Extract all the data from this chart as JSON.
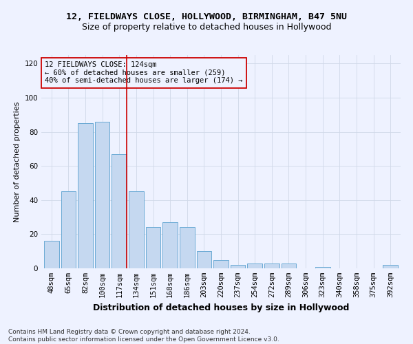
{
  "title": "12, FIELDWAYS CLOSE, HOLLYWOOD, BIRMINGHAM, B47 5NU",
  "subtitle": "Size of property relative to detached houses in Hollywood",
  "xlabel": "Distribution of detached houses by size in Hollywood",
  "ylabel": "Number of detached properties",
  "categories": [
    "48sqm",
    "65sqm",
    "82sqm",
    "100sqm",
    "117sqm",
    "134sqm",
    "151sqm",
    "168sqm",
    "186sqm",
    "203sqm",
    "220sqm",
    "237sqm",
    "254sqm",
    "272sqm",
    "289sqm",
    "306sqm",
    "323sqm",
    "340sqm",
    "358sqm",
    "375sqm",
    "392sqm"
  ],
  "values": [
    16,
    45,
    85,
    86,
    67,
    45,
    24,
    27,
    24,
    10,
    5,
    2,
    3,
    3,
    3,
    0,
    1,
    0,
    0,
    0,
    2
  ],
  "bar_color": "#c5d8f0",
  "bar_edge_color": "#6aaad4",
  "red_line_x": 4.42,
  "annotation_text": "12 FIELDWAYS CLOSE: 124sqm\n← 60% of detached houses are smaller (259)\n40% of semi-detached houses are larger (174) →",
  "ylim": [
    0,
    125
  ],
  "yticks": [
    0,
    20,
    40,
    60,
    80,
    100,
    120
  ],
  "footer_line1": "Contains HM Land Registry data © Crown copyright and database right 2024.",
  "footer_line2": "Contains public sector information licensed under the Open Government Licence v3.0.",
  "bg_color": "#eef2ff",
  "grid_color": "#d0d8e8",
  "annotation_box_color": "#cc0000",
  "title_fontsize": 9.5,
  "subtitle_fontsize": 9,
  "xlabel_fontsize": 9,
  "ylabel_fontsize": 8,
  "tick_fontsize": 7.5,
  "annotation_fontsize": 7.5,
  "footer_fontsize": 6.5
}
